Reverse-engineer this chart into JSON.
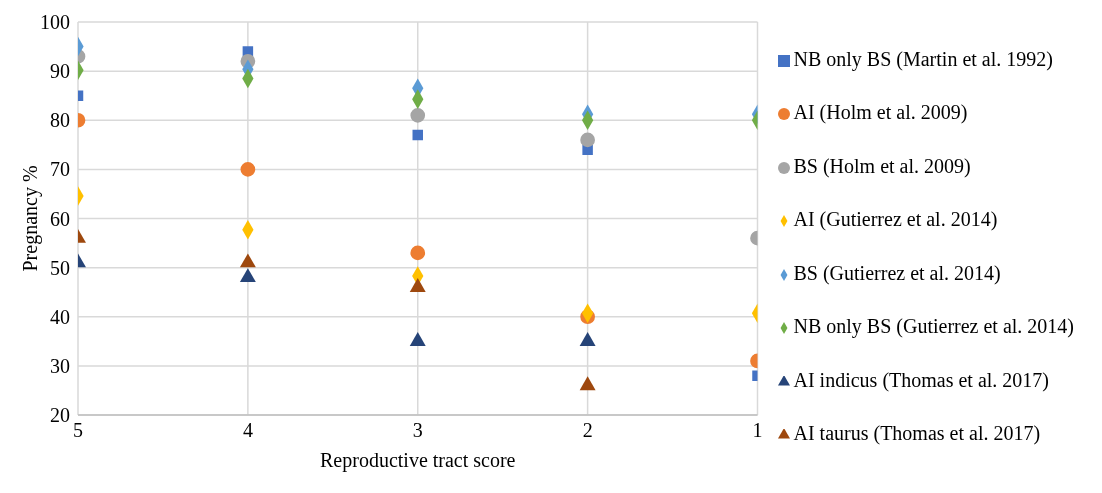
{
  "chart_data": {
    "type": "scatter",
    "xlabel": "Reproductive tract score",
    "ylabel": "Pregnancy %",
    "xlim": [
      5,
      1
    ],
    "xticks": [
      5,
      4,
      3,
      2,
      1
    ],
    "ylim": [
      20,
      100
    ],
    "yticks": [
      20,
      30,
      40,
      50,
      60,
      70,
      80,
      90,
      100
    ],
    "grid": true,
    "legend": "right",
    "series": [
      {
        "name": "NB only BS (Martin et al. 1992)",
        "color": "#4472c4",
        "marker": "square",
        "x": [
          5,
          4,
          3,
          2,
          1
        ],
        "values": [
          85,
          94,
          77,
          74,
          28
        ]
      },
      {
        "name": "AI (Holm et al. 2009)",
        "color": "#ed7d31",
        "marker": "circle",
        "x": [
          5,
          4,
          3,
          2,
          1
        ],
        "values": [
          80,
          70,
          53,
          40,
          31
        ]
      },
      {
        "name": "BS (Holm et al. 2009)",
        "color": "#a5a5a5",
        "marker": "circle",
        "x": [
          5,
          4,
          3,
          2,
          1
        ],
        "values": [
          93,
          92,
          81,
          76,
          56
        ]
      },
      {
        "name": "AI (Gutierrez et al. 2014)",
        "color": "#ffc000",
        "marker": "diamond",
        "x": [
          5,
          4,
          3,
          2,
          1
        ],
        "values": [
          64.6,
          57.7,
          48.3,
          40.7,
          40.7
        ]
      },
      {
        "name": "BS (Gutierrez et al. 2014)",
        "color": "#5b9bd5",
        "marker": "diamond",
        "x": [
          5,
          4,
          3,
          2,
          1
        ],
        "values": [
          95,
          90.4,
          86.5,
          81.2,
          81.2
        ]
      },
      {
        "name": "NB only BS (Gutierrez et al. 2014)",
        "color": "#70ad47",
        "marker": "diamond",
        "x": [
          5,
          4,
          3,
          2,
          1
        ],
        "values": [
          90.2,
          88.5,
          84.3,
          80,
          80
        ]
      },
      {
        "name": "AI indicus (Thomas et al. 2017)",
        "color": "#264478",
        "marker": "triangle",
        "x": [
          5,
          4,
          3,
          2
        ],
        "values": [
          51,
          48,
          35,
          35
        ]
      },
      {
        "name": "AI taurus (Thomas et al. 2017)",
        "color": "#9e480e",
        "marker": "triangle",
        "x": [
          5,
          4,
          3,
          2
        ],
        "values": [
          56,
          51,
          46,
          26
        ]
      }
    ]
  }
}
